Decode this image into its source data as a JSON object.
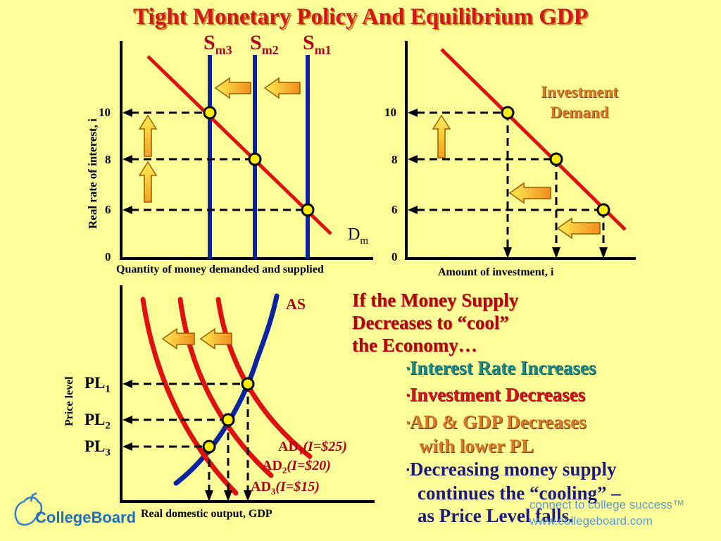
{
  "title": "Tight Monetary Policy And Equilibrium GDP",
  "money_market": {
    "y_axis_label": "Real rate of interest, i",
    "x_axis_label": "Quantity of money demanded and supplied",
    "ticks": [
      "10",
      "8",
      "6",
      "0"
    ],
    "supply_curves": [
      {
        "base": "S",
        "sub": "m3"
      },
      {
        "base": "S",
        "sub": "m2"
      },
      {
        "base": "S",
        "sub": "m1"
      }
    ],
    "demand_label": {
      "base": "D",
      "sub": "m"
    }
  },
  "investment_market": {
    "x_axis_label": "Amount of investment, i",
    "ticks": [
      "10",
      "8",
      "6",
      "0"
    ],
    "curve_label_line1": "Investment",
    "curve_label_line2": "Demand"
  },
  "ad_as": {
    "y_axis_label": "Price level",
    "x_axis_label": "Real domestic output, GDP",
    "as_label": "AS",
    "price_levels": [
      {
        "base": "PL",
        "sub": "1"
      },
      {
        "base": "PL",
        "sub": "2"
      },
      {
        "base": "PL",
        "sub": "3"
      }
    ],
    "ad_curves": [
      {
        "base": "AD",
        "sub": "1",
        "detail": "(I=$25)"
      },
      {
        "base": "AD",
        "sub": "2",
        "detail": "(I=$20)"
      },
      {
        "base": "AD",
        "sub": "3",
        "detail": "(I=$15)"
      }
    ]
  },
  "explanation": {
    "line1": "If the Money Supply",
    "line2": "Decreases to “cool”",
    "line3": "the Economy…"
  },
  "bullets": {
    "marker": "▪",
    "b1": "Interest Rate Increases",
    "b2": "Investment Decreases",
    "b3_line1": "AD & GDP Decreases",
    "b3_line2": "with lower PL",
    "b4_line1": "Decreasing money supply",
    "b4_line2": "continues the “cooling” –",
    "b4_line3": "as Price Level falls."
  },
  "branding": {
    "logo_text": "CollegeBoard",
    "tagline": "connect to college success™",
    "url": "www.collegeboard.com"
  },
  "colors": {
    "background": "#ffff99",
    "title_red": "#d4141e",
    "curve_red": "#e01010",
    "supply_blue": "#0a23a0",
    "point_yellow": "#ffee00",
    "arrow_orange": "#f08c1c"
  }
}
